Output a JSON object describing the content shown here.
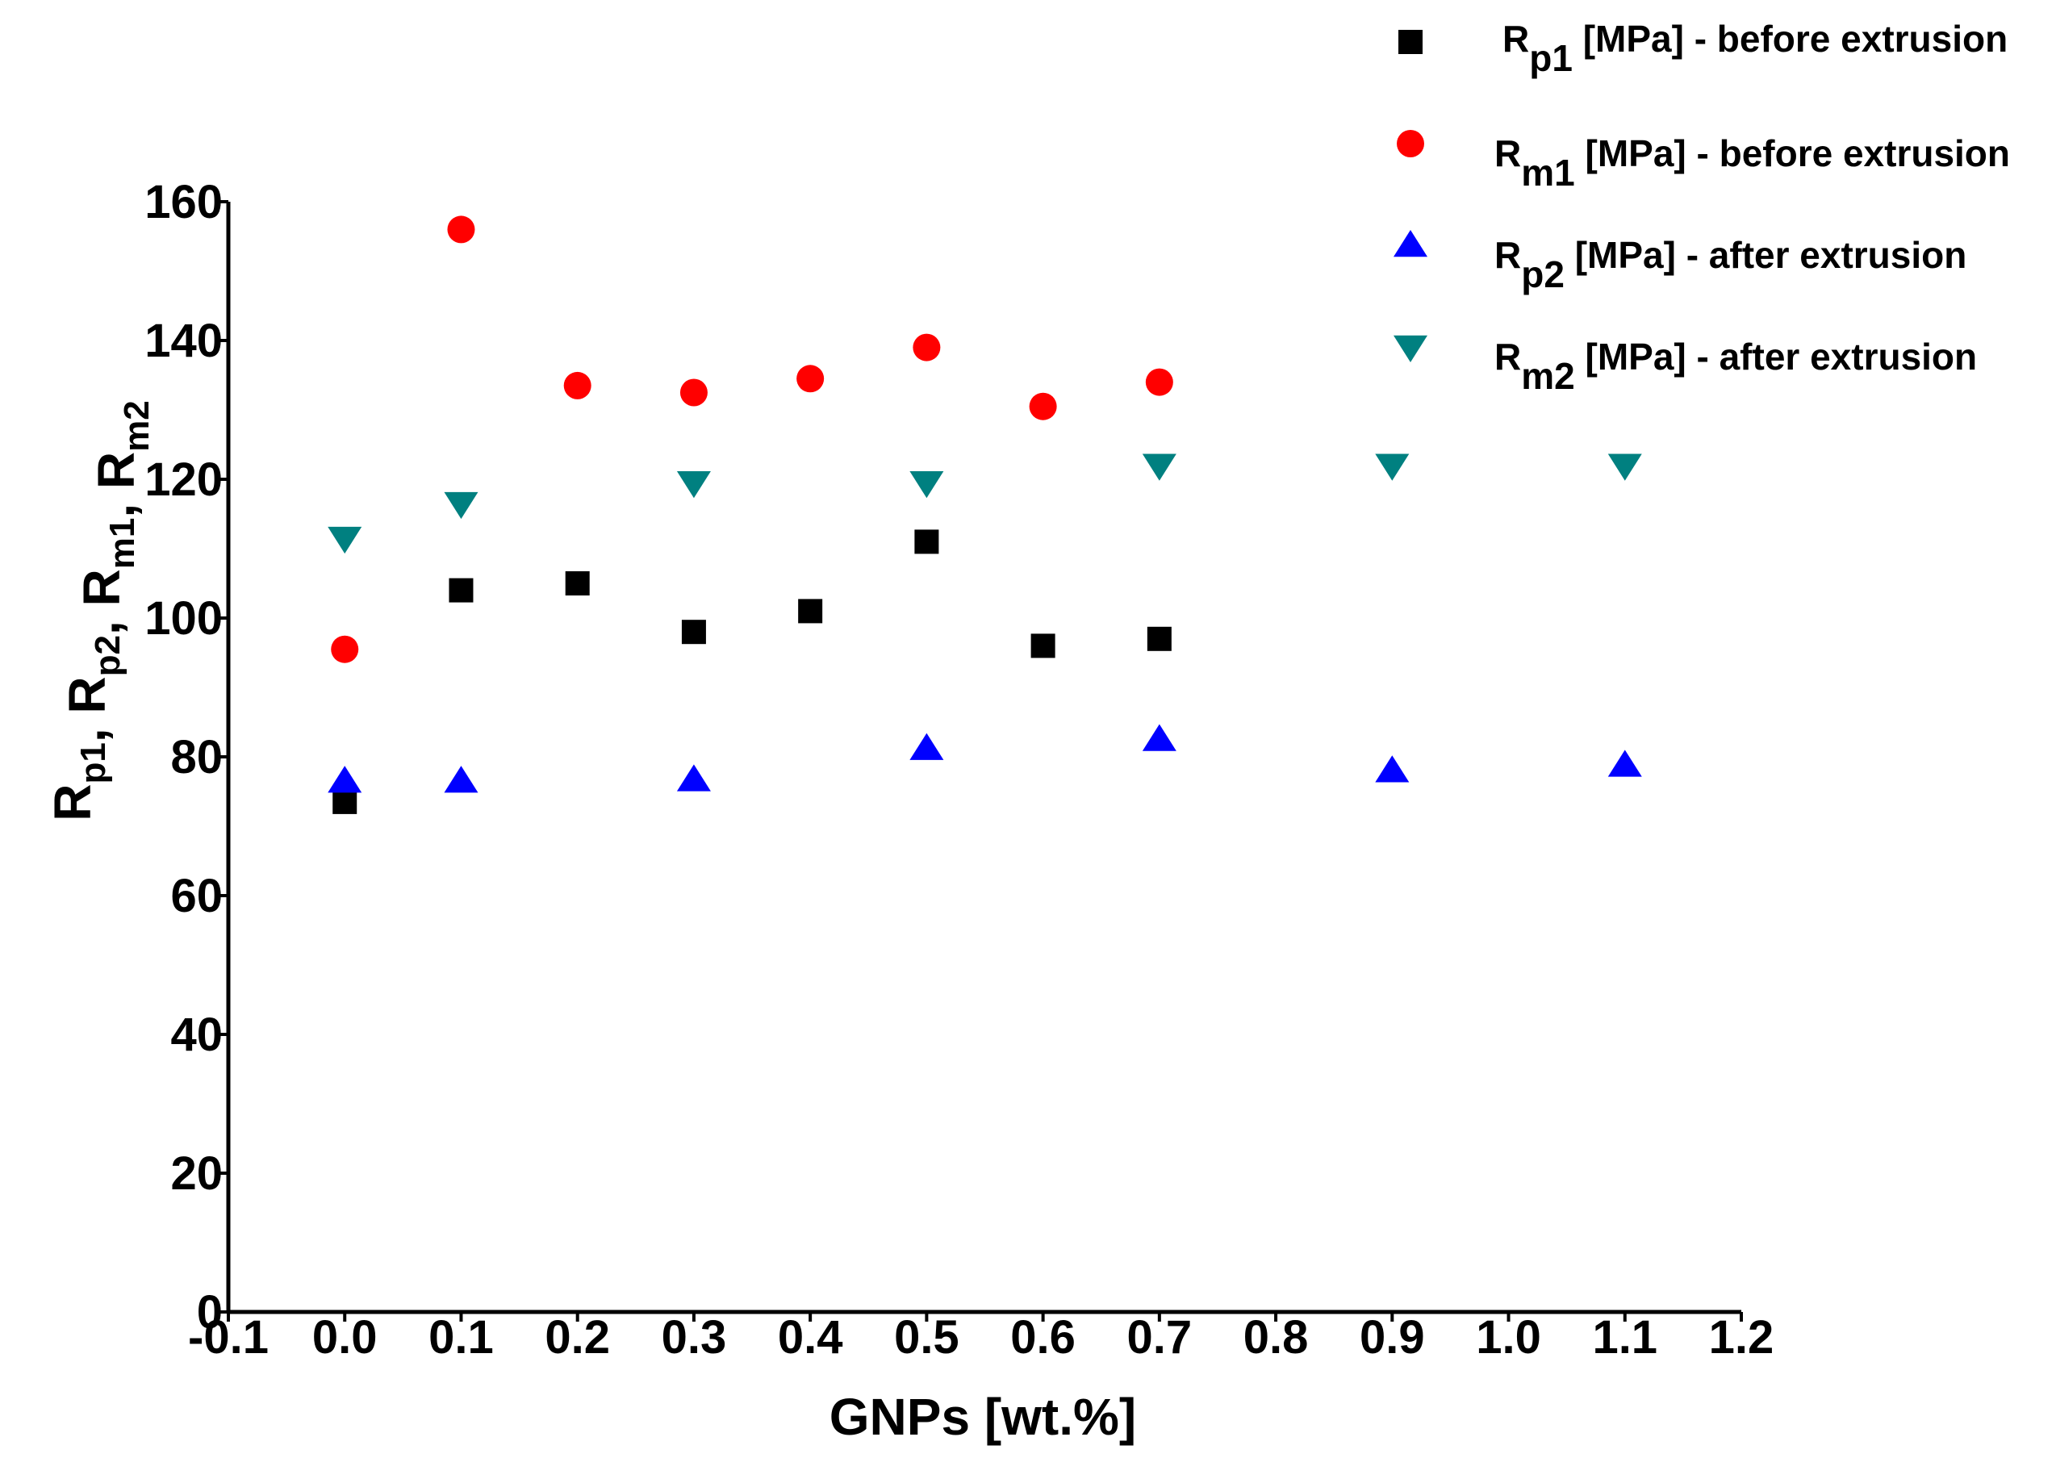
{
  "chart_data": {
    "type": "scatter",
    "title": "",
    "xlabel": "GNPs [wt.%]",
    "ylabel_parts": [
      {
        "base": "R",
        "sub": "p1"
      },
      {
        "base": ", ",
        "sub": ""
      },
      {
        "base": "R",
        "sub": "p2"
      },
      {
        "base": ", ",
        "sub": ""
      },
      {
        "base": "R",
        "sub": "m1"
      },
      {
        "base": ", ",
        "sub": ""
      },
      {
        "base": "R",
        "sub": "m2"
      }
    ],
    "xlim": [
      -0.1,
      1.2
    ],
    "ylim": [
      0,
      160
    ],
    "x_ticks": [
      "-0.1",
      "0.0",
      "0.1",
      "0.2",
      "0.3",
      "0.4",
      "0.5",
      "0.6",
      "0.7",
      "0.8",
      "0.9",
      "1.0",
      "1.1",
      "1.2"
    ],
    "x_tick_values": [
      -0.1,
      0.0,
      0.1,
      0.2,
      0.3,
      0.4,
      0.5,
      0.6,
      0.7,
      0.8,
      0.9,
      1.0,
      1.1,
      1.2
    ],
    "y_ticks": [
      "0",
      "20",
      "40",
      "60",
      "80",
      "100",
      "120",
      "140",
      "160"
    ],
    "y_tick_values": [
      0,
      20,
      40,
      60,
      80,
      100,
      120,
      140,
      160
    ],
    "grid": false,
    "legend_position": "top-right",
    "series": [
      {
        "name": "Rp1 [MPa] - before extrusion",
        "legend_base": "R",
        "legend_sub": "p1",
        "legend_rest": " [MPa] - before extrusion",
        "marker": "square",
        "color": "#000000",
        "x": [
          0.0,
          0.1,
          0.2,
          0.3,
          0.4,
          0.5,
          0.6,
          0.7
        ],
        "y": [
          73.5,
          104,
          105,
          98,
          101,
          111,
          96,
          97
        ]
      },
      {
        "name": "Rm1 [MPa] - before extrusion",
        "legend_base": "R",
        "legend_sub": "m1",
        "legend_rest": " [MPa] - before extrusion",
        "marker": "circle",
        "color": "#ff0000",
        "x": [
          0.0,
          0.1,
          0.2,
          0.3,
          0.4,
          0.5,
          0.6,
          0.7
        ],
        "y": [
          95.5,
          156,
          133.5,
          132.5,
          134.5,
          139,
          130.5,
          134
        ]
      },
      {
        "name": "Rp2 [MPa] - after extrusion",
        "legend_base": "R",
        "legend_sub": "p2",
        "legend_rest": " [MPa] - after extrusion",
        "marker": "triangle-up",
        "color": "#0000ff",
        "x": [
          0.0,
          0.1,
          0.3,
          0.5,
          0.7,
          0.9,
          1.1
        ],
        "y": [
          76.5,
          76.5,
          76.7,
          81.2,
          82.5,
          78,
          78.8
        ]
      },
      {
        "name": "Rm2 [MPa] - after extrusion",
        "legend_base": "R",
        "legend_sub": "m2",
        "legend_rest": " [MPa] - after extrusion",
        "marker": "triangle-down",
        "color": "#008080",
        "x": [
          0.0,
          0.1,
          0.3,
          0.5,
          0.7,
          0.9,
          1.1
        ],
        "y": [
          111.5,
          116.5,
          119.5,
          119.5,
          122,
          122,
          122
        ]
      }
    ]
  }
}
